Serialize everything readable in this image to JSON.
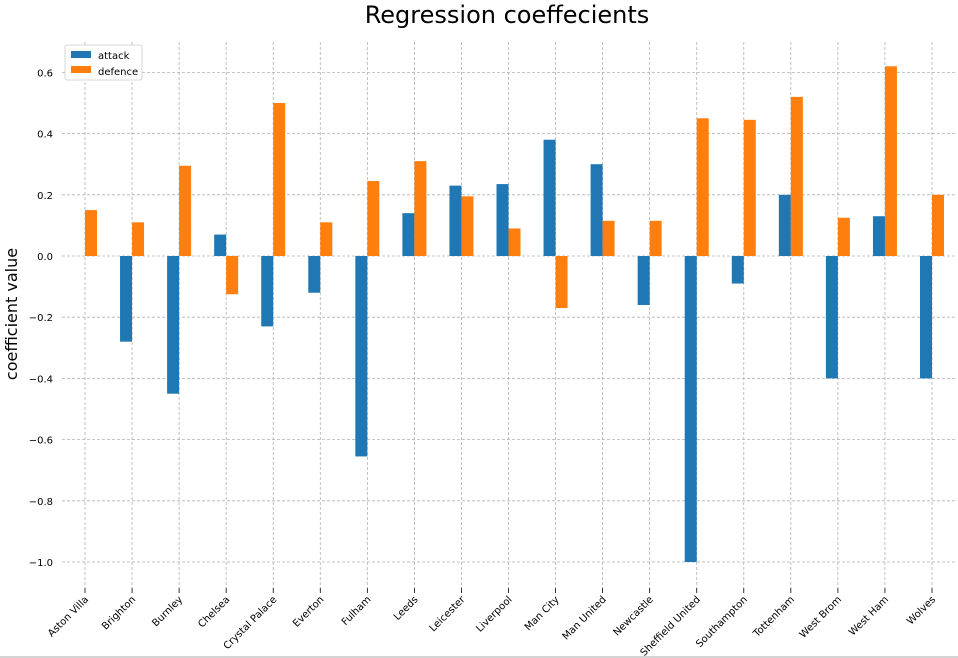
{
  "chart_data": {
    "type": "bar",
    "title": "Regression coeffecients",
    "xlabel": "",
    "ylabel": "coefficient value",
    "categories": [
      "Aston Villa",
      "Brighton",
      "Burnley",
      "Chelsea",
      "Crystal Palace",
      "Everton",
      "Fulham",
      "Leeds",
      "Leicester",
      "Liverpool",
      "Man City",
      "Man United",
      "Newcastle",
      "Sheffield United",
      "Southampton",
      "Tottenham",
      "West Brom",
      "West Ham",
      "Wolves"
    ],
    "series": [
      {
        "name": "attack",
        "color": "#1f77b4",
        "values": [
          0.0,
          -0.28,
          -0.45,
          0.07,
          -0.23,
          -0.12,
          -0.655,
          0.14,
          0.23,
          0.235,
          0.38,
          0.3,
          -0.16,
          -1.0,
          -0.09,
          0.2,
          -0.4,
          0.13,
          -0.4
        ]
      },
      {
        "name": "defence",
        "color": "#ff7f0e",
        "values": [
          0.15,
          0.11,
          0.295,
          -0.125,
          0.5,
          0.11,
          0.245,
          0.31,
          0.195,
          0.09,
          -0.17,
          0.115,
          0.115,
          0.45,
          0.445,
          0.52,
          0.125,
          0.62,
          0.2
        ]
      }
    ],
    "yticks": [
      "0.6",
      "0.4",
      "0.2",
      "0.0",
      "−0.2",
      "−0.4",
      "−0.6",
      "−0.8",
      "−1.0"
    ],
    "ytick_values": [
      0.6,
      0.4,
      0.2,
      0.0,
      -0.2,
      -0.4,
      -0.6,
      -0.8,
      -1.0
    ],
    "ylim": [
      -1.08,
      0.7
    ],
    "grid": true,
    "legend_position": "top-left"
  }
}
